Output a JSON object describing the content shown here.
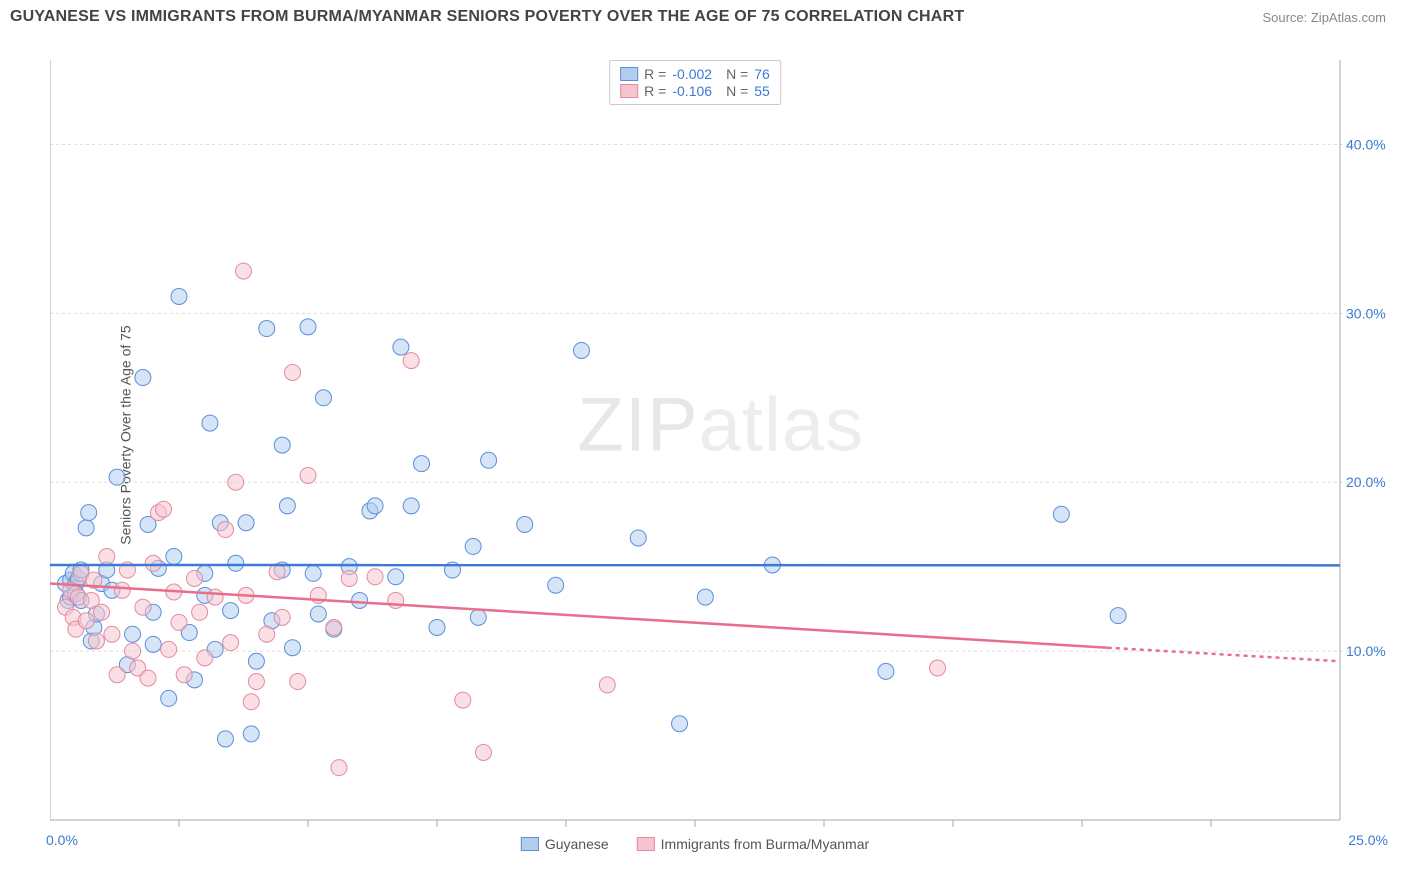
{
  "title": "GUYANESE VS IMMIGRANTS FROM BURMA/MYANMAR SENIORS POVERTY OVER THE AGE OF 75 CORRELATION CHART",
  "source": "Source: ZipAtlas.com",
  "watermark": {
    "bold": "ZIP",
    "light": "atlas"
  },
  "chart": {
    "type": "scatter",
    "y_label": "Seniors Poverty Over the Age of 75",
    "xlim": [
      0,
      25
    ],
    "ylim": [
      0,
      45
    ],
    "x_ticks_minor": [
      2.5,
      5.0,
      7.5,
      10.0,
      12.5,
      15.0,
      17.5,
      20.0,
      22.5
    ],
    "x_tick_labels": {
      "min": "0.0%",
      "max": "25.0%"
    },
    "y_axis_right": {
      "ticks": [
        10,
        20,
        30,
        40
      ],
      "labels": [
        "10.0%",
        "20.0%",
        "30.0%",
        "40.0%"
      ]
    },
    "grid_color": "#dddddd",
    "axis_color": "#aaaaaa",
    "background_color": "#ffffff",
    "marker_radius": 8,
    "series": [
      {
        "name": "Guyanese",
        "color_fill": "#b3cdef",
        "color_stroke": "#5a8fd8",
        "trend_color": "#3a7bd5",
        "R": "-0.002",
        "N": "76",
        "trend": {
          "x1": 0,
          "y1": 15.1,
          "x2": 25,
          "y2": 15.08
        },
        "points": [
          [
            0.3,
            14.0
          ],
          [
            0.35,
            13.0
          ],
          [
            0.4,
            14.2
          ],
          [
            0.4,
            13.2
          ],
          [
            0.45,
            14.6
          ],
          [
            0.5,
            14.0
          ],
          [
            0.5,
            13.4
          ],
          [
            0.55,
            14.3
          ],
          [
            0.6,
            14.8
          ],
          [
            0.6,
            13.0
          ],
          [
            0.7,
            17.3
          ],
          [
            0.75,
            18.2
          ],
          [
            0.8,
            10.6
          ],
          [
            0.85,
            11.4
          ],
          [
            0.9,
            12.2
          ],
          [
            1.0,
            14.0
          ],
          [
            1.1,
            14.8
          ],
          [
            1.2,
            13.6
          ],
          [
            1.3,
            20.3
          ],
          [
            1.5,
            9.2
          ],
          [
            1.6,
            11.0
          ],
          [
            1.8,
            26.2
          ],
          [
            1.9,
            17.5
          ],
          [
            2.0,
            12.3
          ],
          [
            2.0,
            10.4
          ],
          [
            2.1,
            14.9
          ],
          [
            2.3,
            7.2
          ],
          [
            2.4,
            15.6
          ],
          [
            2.5,
            31.0
          ],
          [
            2.7,
            11.1
          ],
          [
            2.8,
            8.3
          ],
          [
            3.0,
            13.3
          ],
          [
            3.0,
            14.6
          ],
          [
            3.1,
            23.5
          ],
          [
            3.2,
            10.1
          ],
          [
            3.3,
            17.6
          ],
          [
            3.4,
            4.8
          ],
          [
            3.5,
            12.4
          ],
          [
            3.6,
            15.2
          ],
          [
            3.8,
            17.6
          ],
          [
            3.9,
            5.1
          ],
          [
            4.0,
            9.4
          ],
          [
            4.2,
            29.1
          ],
          [
            4.3,
            11.8
          ],
          [
            4.5,
            22.2
          ],
          [
            4.5,
            14.8
          ],
          [
            4.6,
            18.6
          ],
          [
            4.7,
            10.2
          ],
          [
            5.0,
            29.2
          ],
          [
            5.1,
            14.6
          ],
          [
            5.2,
            12.2
          ],
          [
            5.3,
            25.0
          ],
          [
            5.5,
            11.3
          ],
          [
            5.8,
            15.0
          ],
          [
            6.0,
            13.0
          ],
          [
            6.2,
            18.3
          ],
          [
            6.3,
            18.6
          ],
          [
            6.7,
            14.4
          ],
          [
            6.8,
            28.0
          ],
          [
            7.0,
            18.6
          ],
          [
            7.2,
            21.1
          ],
          [
            7.5,
            11.4
          ],
          [
            7.8,
            14.8
          ],
          [
            8.2,
            16.2
          ],
          [
            8.3,
            12.0
          ],
          [
            8.5,
            21.3
          ],
          [
            9.2,
            17.5
          ],
          [
            9.8,
            13.9
          ],
          [
            10.3,
            27.8
          ],
          [
            11.4,
            16.7
          ],
          [
            12.2,
            5.7
          ],
          [
            12.7,
            13.2
          ],
          [
            14.0,
            15.1
          ],
          [
            16.2,
            8.8
          ],
          [
            19.6,
            18.1
          ],
          [
            20.7,
            12.1
          ]
        ]
      },
      {
        "name": "Immigrants from Burma/Myanmar",
        "color_fill": "#f5c4cf",
        "color_stroke": "#e38ba0",
        "trend_color": "#e76f8c",
        "R": "-0.106",
        "N": "55",
        "trend": {
          "x1": 0,
          "y1": 14.0,
          "x2": 20.5,
          "y2": 10.2,
          "ext_x2": 25,
          "ext_y2": 9.4
        },
        "points": [
          [
            0.3,
            12.6
          ],
          [
            0.4,
            13.6
          ],
          [
            0.45,
            12.0
          ],
          [
            0.5,
            11.3
          ],
          [
            0.55,
            13.2
          ],
          [
            0.6,
            14.6
          ],
          [
            0.7,
            11.8
          ],
          [
            0.8,
            13.0
          ],
          [
            0.85,
            14.2
          ],
          [
            0.9,
            10.6
          ],
          [
            1.0,
            12.3
          ],
          [
            1.1,
            15.6
          ],
          [
            1.2,
            11.0
          ],
          [
            1.3,
            8.6
          ],
          [
            1.4,
            13.6
          ],
          [
            1.5,
            14.8
          ],
          [
            1.6,
            10.0
          ],
          [
            1.7,
            9.0
          ],
          [
            1.8,
            12.6
          ],
          [
            1.9,
            8.4
          ],
          [
            2.0,
            15.2
          ],
          [
            2.1,
            18.2
          ],
          [
            2.2,
            18.4
          ],
          [
            2.3,
            10.1
          ],
          [
            2.4,
            13.5
          ],
          [
            2.5,
            11.7
          ],
          [
            2.6,
            8.6
          ],
          [
            2.8,
            14.3
          ],
          [
            2.9,
            12.3
          ],
          [
            3.0,
            9.6
          ],
          [
            3.2,
            13.2
          ],
          [
            3.4,
            17.2
          ],
          [
            3.5,
            10.5
          ],
          [
            3.6,
            20.0
          ],
          [
            3.75,
            32.5
          ],
          [
            3.8,
            13.3
          ],
          [
            3.9,
            7.0
          ],
          [
            4.0,
            8.2
          ],
          [
            4.2,
            11.0
          ],
          [
            4.4,
            14.7
          ],
          [
            4.5,
            12.0
          ],
          [
            4.7,
            26.5
          ],
          [
            4.8,
            8.2
          ],
          [
            5.0,
            20.4
          ],
          [
            5.2,
            13.3
          ],
          [
            5.5,
            11.4
          ],
          [
            5.6,
            3.1
          ],
          [
            5.8,
            14.3
          ],
          [
            6.3,
            14.4
          ],
          [
            6.7,
            13.0
          ],
          [
            7.0,
            27.2
          ],
          [
            8.0,
            7.1
          ],
          [
            8.4,
            4.0
          ],
          [
            10.8,
            8.0
          ],
          [
            17.2,
            9.0
          ]
        ]
      }
    ]
  },
  "fontsize": {
    "title": 16,
    "label": 14,
    "tick": 14,
    "legend": 14
  }
}
